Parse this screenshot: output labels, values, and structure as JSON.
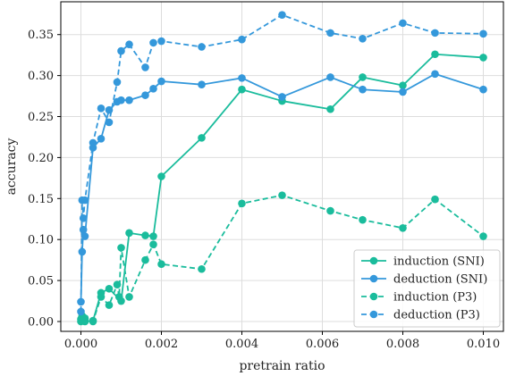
{
  "chart_data": {
    "type": "line",
    "title": "",
    "xlabel": "pretrain ratio",
    "ylabel": "accuracy",
    "xlim": [
      -0.0005,
      0.0105
    ],
    "ylim": [
      -0.012,
      0.39
    ],
    "xticks": [
      0.0,
      0.002,
      0.004,
      0.006,
      0.008,
      0.01
    ],
    "xtick_labels": [
      "0.000",
      "0.002",
      "0.004",
      "0.006",
      "0.008",
      "0.010"
    ],
    "yticks": [
      0.0,
      0.05,
      0.1,
      0.15,
      0.2,
      0.25,
      0.3,
      0.35
    ],
    "ytick_labels": [
      "0.00",
      "0.05",
      "0.10",
      "0.15",
      "0.20",
      "0.25",
      "0.30",
      "0.35"
    ],
    "grid": true,
    "legend_position": "bottom-right",
    "series": [
      {
        "name": "induction (SNI)",
        "color": "#1ABC9C",
        "dash": "solid",
        "x": [
          0.0,
          3e-05,
          6e-05,
          0.0001,
          0.0003,
          0.0005,
          0.0007,
          0.001,
          0.0012,
          0.0016,
          0.0018,
          0.002,
          0.003,
          0.004,
          0.005,
          0.0062,
          0.007,
          0.008,
          0.0088,
          0.01
        ],
        "y": [
          0.0,
          0.005,
          0.002,
          0.0,
          0.001,
          0.035,
          0.04,
          0.025,
          0.108,
          0.105,
          0.104,
          0.177,
          0.224,
          0.283,
          0.269,
          0.259,
          0.298,
          0.288,
          0.326,
          0.322
        ]
      },
      {
        "name": "deduction (SNI)",
        "color": "#3498DB",
        "dash": "solid",
        "x": [
          0.0,
          3e-05,
          6e-05,
          0.0001,
          0.0003,
          0.0005,
          0.0007,
          0.0009,
          0.001,
          0.0012,
          0.0016,
          0.0018,
          0.002,
          0.003,
          0.004,
          0.005,
          0.0062,
          0.007,
          0.008,
          0.0088,
          0.01
        ],
        "y": [
          0.024,
          0.085,
          0.112,
          0.104,
          0.212,
          0.223,
          0.258,
          0.268,
          0.27,
          0.27,
          0.276,
          0.284,
          0.293,
          0.289,
          0.297,
          0.274,
          0.298,
          0.283,
          0.28,
          0.302,
          0.283
        ]
      },
      {
        "name": "induction (P3)",
        "color": "#1ABC9C",
        "dash": "dashed",
        "x": [
          0.0,
          3e-05,
          6e-05,
          0.0001,
          0.0003,
          0.0005,
          0.0007,
          0.0009,
          0.00095,
          0.001,
          0.0012,
          0.0016,
          0.0018,
          0.002,
          0.003,
          0.004,
          0.005,
          0.0062,
          0.007,
          0.008,
          0.0088,
          0.01
        ],
        "y": [
          0.003,
          0.007,
          0.002,
          0.004,
          0.0,
          0.03,
          0.02,
          0.045,
          0.03,
          0.09,
          0.03,
          0.075,
          0.094,
          0.07,
          0.064,
          0.144,
          0.154,
          0.135,
          0.124,
          0.114,
          0.149,
          0.104
        ]
      },
      {
        "name": "deduction (P3)",
        "color": "#3498DB",
        "dash": "dashed",
        "x": [
          0.0,
          3e-05,
          6e-05,
          0.0001,
          0.0003,
          0.0005,
          0.0007,
          0.0009,
          0.001,
          0.0012,
          0.0016,
          0.0018,
          0.002,
          0.003,
          0.004,
          0.005,
          0.0062,
          0.007,
          0.008,
          0.0088,
          0.01
        ],
        "y": [
          0.012,
          0.148,
          0.126,
          0.148,
          0.218,
          0.26,
          0.243,
          0.292,
          0.33,
          0.338,
          0.31,
          0.34,
          0.342,
          0.335,
          0.344,
          0.374,
          0.352,
          0.345,
          0.364,
          0.352,
          0.351
        ]
      }
    ]
  }
}
